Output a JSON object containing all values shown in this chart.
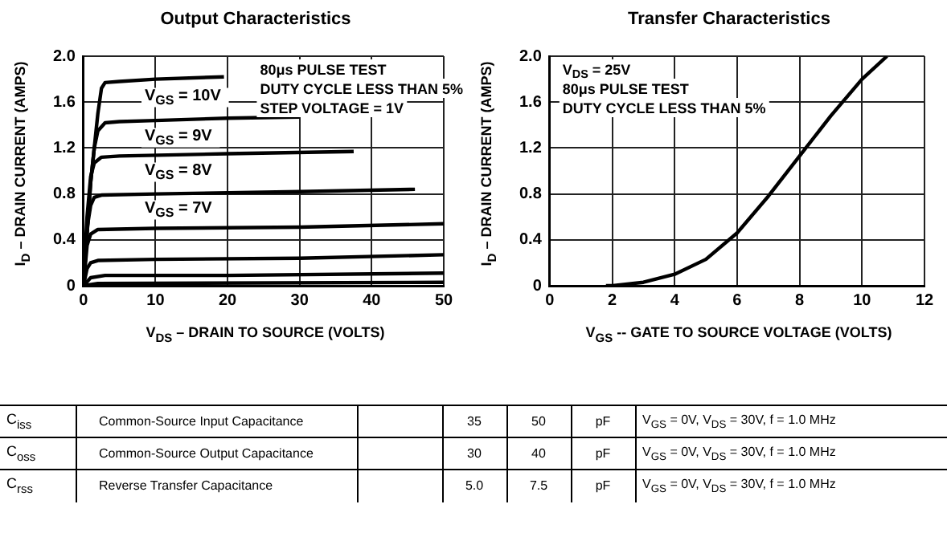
{
  "chart_data": [
    {
      "type": "line",
      "title": "Output Characteristics",
      "xlabel": "V$_{DS}$ – DRAIN TO SOURCE (VOLTS)",
      "ylabel": "I$_{D}$ – DRAIN CURRENT (AMPS)",
      "xlim": [
        0,
        50
      ],
      "xticks": [
        0,
        10,
        20,
        30,
        40,
        50
      ],
      "ylim": [
        0,
        2
      ],
      "yticks": [
        0,
        0.4,
        0.8,
        1.2,
        1.6,
        {
          "value": 2,
          "label": "2.0"
        }
      ],
      "grid": true,
      "legend": false,
      "marker": "none",
      "annotations": [
        "80μs PULSE TEST",
        "DUTY CYCLE LESS THAN 5%",
        "STEP VOLTAGE = 1V"
      ],
      "series": [
        {
          "name": "V$_{GS}$ = 10V",
          "color": "#000000",
          "x": [
            0,
            1,
            2,
            2.5,
            3,
            5,
            10,
            19.5
          ],
          "values": [
            0,
            0.9,
            1.5,
            1.72,
            1.77,
            1.78,
            1.8,
            1.82
          ]
        },
        {
          "name": "V$_{GS}$ = 9V",
          "color": "#000000",
          "x": [
            0,
            1,
            1.5,
            2,
            3,
            5,
            10,
            20,
            30
          ],
          "values": [
            0,
            0.9,
            1.2,
            1.35,
            1.42,
            1.43,
            1.44,
            1.46,
            1.47
          ]
        },
        {
          "name": "V$_{GS}$ = 8V",
          "color": "#000000",
          "x": [
            0,
            0.5,
            1,
            1.5,
            2.5,
            5,
            20,
            37.5
          ],
          "values": [
            0,
            0.6,
            0.95,
            1.07,
            1.12,
            1.13,
            1.15,
            1.17
          ]
        },
        {
          "name": "V$_{GS}$ = 7V",
          "color": "#000000",
          "x": [
            0,
            0.5,
            1,
            1.5,
            2.5,
            10,
            30,
            46
          ],
          "values": [
            0,
            0.5,
            0.7,
            0.77,
            0.79,
            0.8,
            0.82,
            0.84
          ]
        },
        {
          "color": "#000000",
          "x": [
            0,
            0.5,
            1,
            2,
            10,
            30,
            50
          ],
          "values": [
            0,
            0.35,
            0.45,
            0.49,
            0.5,
            0.51,
            0.54
          ]
        },
        {
          "color": "#000000",
          "x": [
            0,
            0.5,
            1,
            2,
            10,
            30,
            50
          ],
          "values": [
            0,
            0.15,
            0.2,
            0.22,
            0.23,
            0.24,
            0.27
          ]
        },
        {
          "color": "#000000",
          "x": [
            0,
            1,
            3,
            20,
            50
          ],
          "values": [
            0,
            0.07,
            0.09,
            0.09,
            0.11
          ]
        },
        {
          "color": "#000000",
          "x": [
            0,
            2,
            50
          ],
          "values": [
            0,
            0.02,
            0.03
          ]
        }
      ]
    },
    {
      "type": "line",
      "title": "Transfer Characteristics",
      "xlabel": "V$_{GS}$ -- GATE TO SOURCE VOLTAGE (VOLTS)",
      "ylabel": "I$_{D}$ – DRAIN CURRENT (AMPS)",
      "xlim": [
        0,
        12
      ],
      "xticks": [
        0,
        2,
        4,
        6,
        8,
        10,
        12
      ],
      "ylim": [
        0,
        2
      ],
      "yticks": [
        0,
        0.4,
        0.8,
        1.2,
        1.6,
        {
          "value": 2,
          "label": "2.0"
        }
      ],
      "grid": true,
      "legend": false,
      "marker": "none",
      "annotations": [
        "V$_{DS}$ = 25V",
        "80μs PULSE TEST",
        "DUTY CYCLE LESS THAN 5%"
      ],
      "series": [
        {
          "color": "#000000",
          "x": [
            1.8,
            2,
            3,
            4,
            5,
            6,
            7,
            8,
            9,
            10,
            10.8
          ],
          "values": [
            0,
            0,
            0.03,
            0.1,
            0.23,
            0.46,
            0.78,
            1.13,
            1.48,
            1.8,
            2
          ]
        }
      ]
    },
    {
      "type": "other",
      "annotations": [
        "C$_{iss}$",
        "Common-Source Input Capacitance",
        "35",
        "50",
        "pF",
        "V$_{GS}$ = 0V, V$_{DS}$ = 30V, f = 1.0 MHz",
        "C$_{oss}$",
        "Common-Source Output Capacitance",
        "30",
        "40",
        "pF",
        "V$_{GS}$ = 0V, V$_{DS}$ = 30V, f = 1.0 MHz",
        "C$_{rss}$",
        "Reverse Transfer Capacitance",
        "5.0",
        "7.5",
        "pF",
        "V$_{GS}$ = 0V, V$_{DS}$ = 30V, f = 1.0 MHz"
      ]
    }
  ]
}
